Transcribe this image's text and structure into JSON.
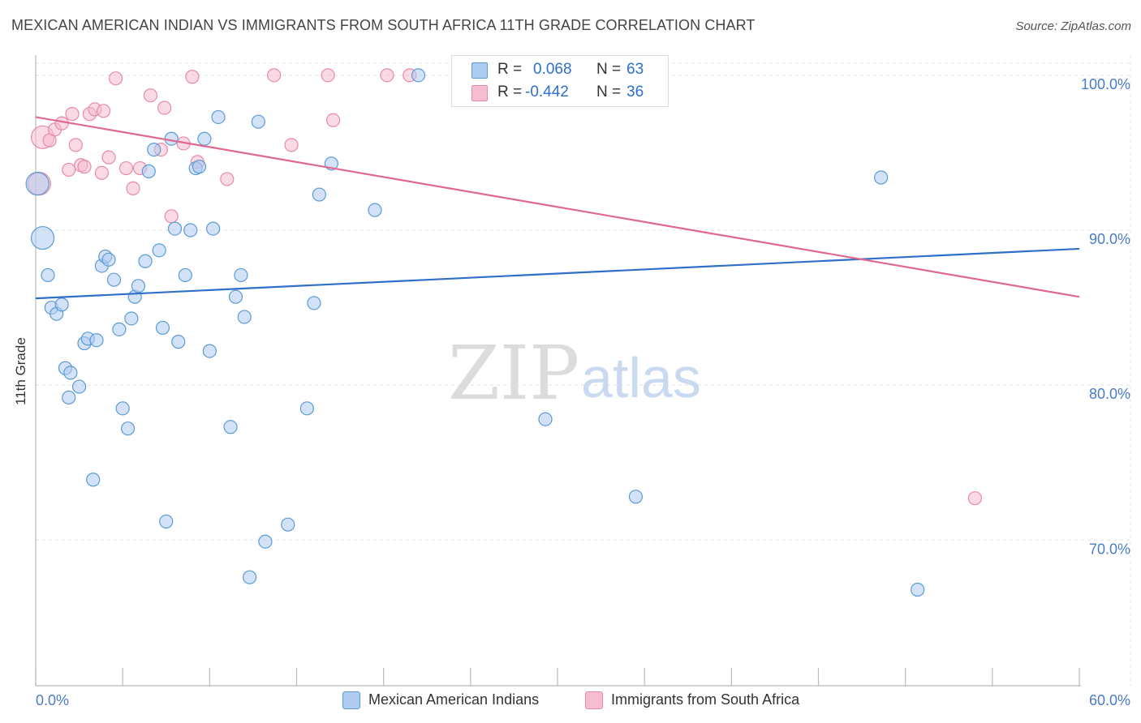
{
  "title": "MEXICAN AMERICAN INDIAN VS IMMIGRANTS FROM SOUTH AFRICA 11TH GRADE CORRELATION CHART",
  "source": "Source: ZipAtlas.com",
  "watermark": {
    "zip": "ZIP",
    "atlas": "atlas"
  },
  "colors": {
    "blue": "#5b9bd5",
    "blue_fill": "#aecbf0",
    "blue_line": "#2f6fca",
    "pink": "#e88aa8",
    "pink_fill": "#f6bcd0",
    "pink_line": "#e0688f",
    "accent_text": "#4a7cc7"
  },
  "stats": [
    {
      "r_label": "R =",
      "r_value": "0.068",
      "n_label": "N =",
      "n_value": "63",
      "color": "blue"
    },
    {
      "r_label": "R =",
      "r_value": "-0.442",
      "n_label": "N =",
      "n_value": "36",
      "color": "pink"
    }
  ],
  "legend": [
    {
      "label": "Mexican American Indians",
      "color": "blue"
    },
    {
      "label": "Immigrants from South Africa",
      "color": "pink"
    }
  ],
  "chart_data": {
    "type": "scatter",
    "title": "MEXICAN AMERICAN INDIAN VS IMMIGRANTS FROM SOUTH AFRICA 11TH GRADE CORRELATION CHART",
    "xlabel": "",
    "ylabel": "11th Grade",
    "xlim": [
      0,
      60
    ],
    "ylim": [
      60.6,
      101.3
    ],
    "x_tick_labels": [
      "0.0%",
      "60.0%"
    ],
    "y_ticks": [
      100,
      90,
      80,
      70
    ],
    "y_tick_labels": [
      "100.0%",
      "90.0%",
      "80.0%",
      "70.0%"
    ],
    "grid": true,
    "series": [
      {
        "name": "Mexican American Indians",
        "color": "blue",
        "trend": {
          "x0": 0,
          "y0": 85.6,
          "x1": 60,
          "y1": 88.8
        },
        "points": [
          [
            0.1,
            93.0
          ],
          [
            0.4,
            89.5
          ],
          [
            0.7,
            87.1
          ],
          [
            0.9,
            85.0
          ],
          [
            1.2,
            84.6
          ],
          [
            1.5,
            85.2
          ],
          [
            1.7,
            81.1
          ],
          [
            1.9,
            79.2
          ],
          [
            2.0,
            80.8
          ],
          [
            2.5,
            79.9
          ],
          [
            2.8,
            82.7
          ],
          [
            3.0,
            83.0
          ],
          [
            3.5,
            82.9
          ],
          [
            3.3,
            73.9
          ],
          [
            3.8,
            87.7
          ],
          [
            4.0,
            88.3
          ],
          [
            4.2,
            88.1
          ],
          [
            4.5,
            86.8
          ],
          [
            4.8,
            83.6
          ],
          [
            5.0,
            78.5
          ],
          [
            5.3,
            77.2
          ],
          [
            5.5,
            84.3
          ],
          [
            5.7,
            85.7
          ],
          [
            5.9,
            86.4
          ],
          [
            6.3,
            88.0
          ],
          [
            6.5,
            93.8
          ],
          [
            6.8,
            95.2
          ],
          [
            7.1,
            88.7
          ],
          [
            7.3,
            83.7
          ],
          [
            7.5,
            71.2
          ],
          [
            7.8,
            95.9
          ],
          [
            8.0,
            90.1
          ],
          [
            8.2,
            82.8
          ],
          [
            8.6,
            87.1
          ],
          [
            8.9,
            90.0
          ],
          [
            9.2,
            94.0
          ],
          [
            9.4,
            94.1
          ],
          [
            9.7,
            95.9
          ],
          [
            10.2,
            90.1
          ],
          [
            10.0,
            82.2
          ],
          [
            10.5,
            97.3
          ],
          [
            11.2,
            77.3
          ],
          [
            11.5,
            85.7
          ],
          [
            11.8,
            87.1
          ],
          [
            12.0,
            84.4
          ],
          [
            12.3,
            67.6
          ],
          [
            12.8,
            97.0
          ],
          [
            13.2,
            69.9
          ],
          [
            14.5,
            71.0
          ],
          [
            15.6,
            78.5
          ],
          [
            16.0,
            85.3
          ],
          [
            16.3,
            92.3
          ],
          [
            17.0,
            94.3
          ],
          [
            19.5,
            91.3
          ],
          [
            22.0,
            100.0
          ],
          [
            26.8,
            100.0
          ],
          [
            28.0,
            100.0
          ],
          [
            29.0,
            100.0
          ],
          [
            29.3,
            77.8
          ],
          [
            34.5,
            72.8
          ],
          [
            48.6,
            93.4
          ],
          [
            50.7,
            66.8
          ],
          [
            24.8,
            99.9
          ]
        ]
      },
      {
        "name": "Immigrants from South Africa",
        "color": "pink",
        "trend": {
          "x0": 0,
          "y0": 97.3,
          "x1": 60,
          "y1": 85.7
        },
        "points": [
          [
            0.2,
            93.0
          ],
          [
            0.4,
            96.0
          ],
          [
            0.8,
            95.8
          ],
          [
            1.1,
            96.5
          ],
          [
            1.5,
            96.9
          ],
          [
            1.9,
            93.9
          ],
          [
            2.1,
            97.5
          ],
          [
            2.3,
            95.5
          ],
          [
            2.6,
            94.2
          ],
          [
            2.8,
            94.1
          ],
          [
            3.1,
            97.5
          ],
          [
            3.4,
            97.8
          ],
          [
            3.8,
            93.7
          ],
          [
            3.9,
            97.7
          ],
          [
            4.2,
            94.7
          ],
          [
            4.6,
            99.8
          ],
          [
            5.2,
            94.0
          ],
          [
            5.6,
            92.7
          ],
          [
            6.0,
            94.0
          ],
          [
            6.6,
            98.7
          ],
          [
            7.2,
            95.2
          ],
          [
            7.4,
            97.9
          ],
          [
            7.8,
            90.9
          ],
          [
            8.5,
            95.6
          ],
          [
            9.0,
            99.9
          ],
          [
            9.3,
            94.4
          ],
          [
            11.0,
            93.3
          ],
          [
            13.7,
            100.0
          ],
          [
            14.7,
            95.5
          ],
          [
            16.8,
            100.0
          ],
          [
            17.1,
            97.1
          ],
          [
            20.2,
            100.0
          ],
          [
            21.5,
            100.0
          ],
          [
            25.8,
            100.0
          ],
          [
            32.9,
            100.0
          ],
          [
            54.0,
            72.7
          ]
        ]
      }
    ]
  }
}
